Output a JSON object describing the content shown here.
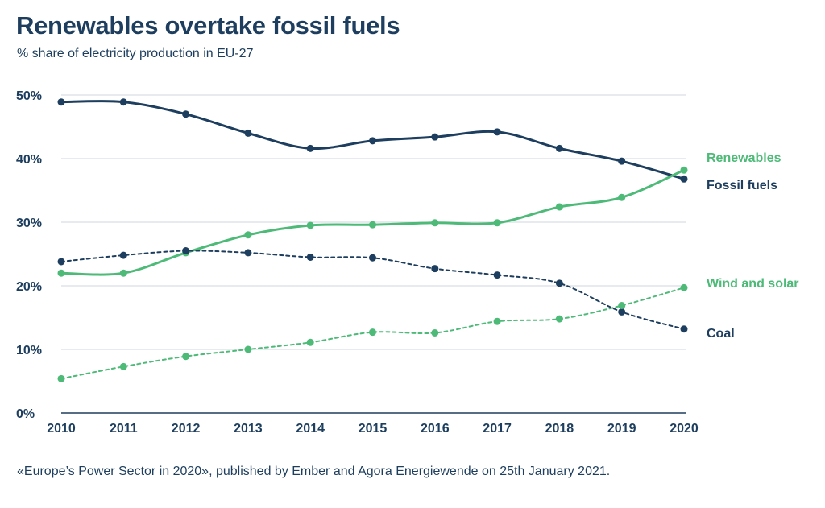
{
  "header": {
    "title": "Renewables overtake fossil fuels",
    "subtitle": "% share of electricity production in EU-27"
  },
  "footer": {
    "source": "«Europe’s Power Sector in 2020», published by Ember and Agora Energiewende on 25th January 2021."
  },
  "colors": {
    "navy": "#1d3e5e",
    "green": "#4dba78",
    "grid": "#cfd6dc"
  },
  "chart_data": {
    "type": "line",
    "title": "Renewables overtake fossil fuels",
    "subtitle": "% share of electricity production in EU-27",
    "x": [
      2010,
      2011,
      2012,
      2013,
      2014,
      2015,
      2016,
      2017,
      2018,
      2019,
      2020
    ],
    "x_tick_labels": [
      "2010",
      "2011",
      "2012",
      "2013",
      "2014",
      "2015",
      "2016",
      "2017",
      "2018",
      "2019",
      "2020"
    ],
    "ylim": [
      0,
      50
    ],
    "y_ticks": [
      0,
      10,
      20,
      30,
      40,
      50
    ],
    "y_tick_labels": [
      "0%",
      "10%",
      "20%",
      "30%",
      "40%",
      "50%"
    ],
    "grid": true,
    "legend": "direct labels at line ends (right)",
    "series": [
      {
        "name": "Fossil fuels",
        "color": "#1d3e5e",
        "style": "solid",
        "values": [
          48.9,
          48.9,
          47.0,
          44.0,
          41.6,
          42.8,
          43.4,
          44.2,
          41.6,
          39.6,
          36.8
        ]
      },
      {
        "name": "Renewables",
        "color": "#4dba78",
        "style": "solid",
        "values": [
          22.0,
          22.0,
          25.2,
          28.0,
          29.5,
          29.6,
          29.9,
          29.9,
          32.4,
          33.9,
          38.2
        ]
      },
      {
        "name": "Coal",
        "color": "#1d3e5e",
        "style": "dashed",
        "values": [
          23.8,
          24.8,
          25.5,
          25.2,
          24.5,
          24.4,
          22.7,
          21.7,
          20.4,
          15.9,
          13.2
        ]
      },
      {
        "name": "Wind and solar",
        "color": "#4dba78",
        "style": "dashed",
        "values": [
          5.4,
          7.3,
          8.9,
          10.0,
          11.1,
          12.7,
          12.6,
          14.4,
          14.8,
          16.9,
          19.7
        ]
      }
    ]
  }
}
